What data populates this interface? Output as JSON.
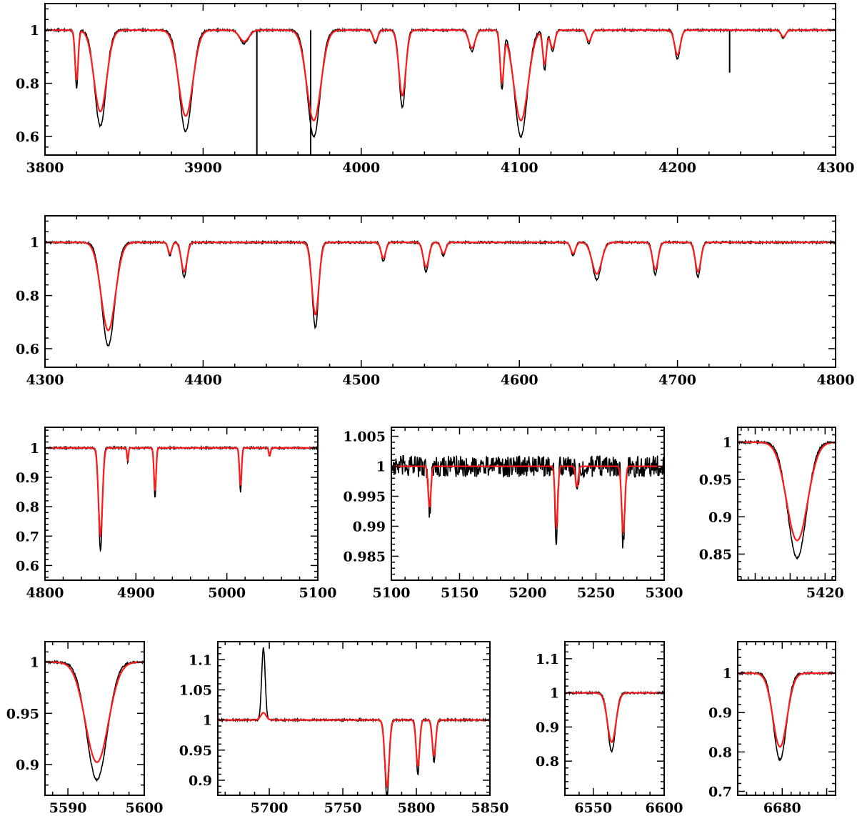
{
  "colors": {
    "observed": "#000000",
    "model": "#ff1a1a",
    "frame": "#000000"
  },
  "chart_data": [
    {
      "type": "line",
      "title": "",
      "xlabel": "",
      "ylabel": "",
      "xlim": [
        3800,
        4300
      ],
      "ylim": [
        0.53,
        1.1
      ],
      "grid": false,
      "x_ticks": [
        3800,
        3900,
        4000,
        4100,
        4200,
        4300
      ],
      "y_ticks": [
        {
          "v": 0.6,
          "label": "0.6"
        },
        {
          "v": 0.8,
          "label": "0.8"
        },
        {
          "v": 1,
          "label": "1"
        }
      ],
      "lines": [
        {
          "x": 3820,
          "d": 0.22,
          "w": 1.0
        },
        {
          "x": 3835,
          "d": 0.36,
          "w": 4
        },
        {
          "x": 3889,
          "d": 0.38,
          "w": 4.5
        },
        {
          "x": 3926,
          "d": 0.05,
          "w": 3
        },
        {
          "x": 3970,
          "d": 0.4,
          "w": 4.5
        },
        {
          "x": 4009,
          "d": 0.05,
          "w": 1.5
        },
        {
          "x": 4026,
          "d": 0.29,
          "w": 2.2
        },
        {
          "x": 4070,
          "d": 0.08,
          "w": 2
        },
        {
          "x": 4089,
          "d": 0.22,
          "w": 1.2
        },
        {
          "x": 4101,
          "d": 0.4,
          "w": 4.5
        },
        {
          "x": 4116,
          "d": 0.15,
          "w": 1.2
        },
        {
          "x": 4121,
          "d": 0.08,
          "w": 1.5
        },
        {
          "x": 4144,
          "d": 0.05,
          "w": 1.5
        },
        {
          "x": 4200,
          "d": 0.11,
          "w": 1.8
        },
        {
          "x": 4267,
          "d": 0.03,
          "w": 1.5
        }
      ],
      "spikes": [
        {
          "x": 3934,
          "depth": 0.99
        },
        {
          "x": 3968,
          "depth": 0.9
        },
        {
          "x": 4233,
          "depth": 0.16
        }
      ]
    },
    {
      "type": "line",
      "title": "",
      "xlabel": "",
      "ylabel": "",
      "xlim": [
        4300,
        4800
      ],
      "ylim": [
        0.53,
        1.1
      ],
      "grid": false,
      "x_ticks": [
        4300,
        4400,
        4500,
        4600,
        4700,
        4800
      ],
      "y_ticks": [
        {
          "v": 0.6,
          "label": "0.6"
        },
        {
          "v": 0.8,
          "label": "0.8"
        },
        {
          "v": 1,
          "label": "1"
        }
      ],
      "lines": [
        {
          "x": 4340,
          "d": 0.39,
          "w": 4.5
        },
        {
          "x": 4379,
          "d": 0.05,
          "w": 1.2
        },
        {
          "x": 4388,
          "d": 0.13,
          "w": 1.8
        },
        {
          "x": 4471,
          "d": 0.32,
          "w": 2.2
        },
        {
          "x": 4514,
          "d": 0.07,
          "w": 1.5
        },
        {
          "x": 4541,
          "d": 0.11,
          "w": 1.8
        },
        {
          "x": 4552,
          "d": 0.05,
          "w": 1.5
        },
        {
          "x": 4634,
          "d": 0.05,
          "w": 1.5
        },
        {
          "x": 4649,
          "d": 0.14,
          "w": 3
        },
        {
          "x": 4686,
          "d": 0.12,
          "w": 1.8
        },
        {
          "x": 4713,
          "d": 0.13,
          "w": 1.8
        }
      ],
      "spikes": []
    },
    {
      "type": "line",
      "title": "",
      "xlabel": "",
      "ylabel": "",
      "xlim": [
        4800,
        5100
      ],
      "ylim": [
        0.55,
        1.07
      ],
      "grid": false,
      "x_ticks": [
        4800,
        4900,
        5000,
        5100
      ],
      "y_ticks": [
        {
          "v": 0.6,
          "label": "0.6"
        },
        {
          "v": 0.7,
          "label": "0.7"
        },
        {
          "v": 0.8,
          "label": "0.8"
        },
        {
          "v": 0.9,
          "label": "0.9"
        },
        {
          "v": 1,
          "label": "1"
        }
      ],
      "lines": [
        {
          "x": 4861,
          "d": 0.35,
          "w": 2.2
        },
        {
          "x": 4921,
          "d": 0.17,
          "w": 1.2
        },
        {
          "x": 5015,
          "d": 0.15,
          "w": 1.2
        },
        {
          "x": 4891,
          "d": 0.05,
          "w": 0.8
        },
        {
          "x": 5047,
          "d": 0.03,
          "w": 1
        }
      ],
      "spikes": []
    },
    {
      "type": "line",
      "title": "",
      "xlabel": "",
      "ylabel": "",
      "xlim": [
        5100,
        5300
      ],
      "ylim": [
        0.981,
        1.0065
      ],
      "grid": false,
      "x_ticks": [
        5100,
        5150,
        5200,
        5250,
        5300
      ],
      "y_ticks": [
        {
          "v": 0.985,
          "label": "0.985"
        },
        {
          "v": 0.99,
          "label": "0.99"
        },
        {
          "v": 0.995,
          "label": "0.995"
        },
        {
          "v": 1,
          "label": "1"
        },
        {
          "v": 1.005,
          "label": "1.005"
        }
      ],
      "lines": [
        {
          "x": 5128,
          "d": 0.008,
          "w": 1
        },
        {
          "x": 5221,
          "d": 0.012,
          "w": 1
        },
        {
          "x": 5270,
          "d": 0.013,
          "w": 1.2
        },
        {
          "x": 5236,
          "d": 0.004,
          "w": 1
        }
      ],
      "spikes": []
    },
    {
      "type": "line",
      "title": "",
      "xlabel": "",
      "ylabel": "",
      "xlim": [
        5395,
        5423
      ],
      "ylim": [
        0.815,
        1.02
      ],
      "grid": false,
      "x_ticks": [
        5420
      ],
      "y_ticks": [
        {
          "v": 0.85,
          "label": "0.85"
        },
        {
          "v": 0.9,
          "label": "0.9"
        },
        {
          "v": 0.95,
          "label": "0.95"
        },
        {
          "v": 1,
          "label": "1"
        }
      ],
      "lines": [
        {
          "x": 5412,
          "d": 0.155,
          "w": 3
        }
      ],
      "spikes": []
    },
    {
      "type": "line",
      "title": "",
      "xlabel": "",
      "ylabel": "",
      "xlim": [
        5587,
        5600
      ],
      "ylim": [
        0.87,
        1.02
      ],
      "grid": false,
      "x_ticks": [
        5590,
        5600
      ],
      "y_ticks": [
        {
          "v": 0.9,
          "label": "0.9"
        },
        {
          "v": 0.95,
          "label": "0.95"
        },
        {
          "v": 1,
          "label": "1"
        }
      ],
      "lines": [
        {
          "x": 5593.8,
          "d": 0.115,
          "w": 1.5
        }
      ],
      "spikes": []
    },
    {
      "type": "line",
      "title": "",
      "xlabel": "",
      "ylabel": "",
      "xlim": [
        5665,
        5850
      ],
      "ylim": [
        0.875,
        1.13
      ],
      "grid": false,
      "x_ticks": [
        5700,
        5750,
        5800,
        5850
      ],
      "y_ticks": [
        {
          "v": 0.9,
          "label": "0.9"
        },
        {
          "v": 0.95,
          "label": "0.95"
        },
        {
          "v": 1,
          "label": "1"
        },
        {
          "v": 1.05,
          "label": "1.05"
        },
        {
          "v": 1.1,
          "label": "1.1"
        }
      ],
      "lines": [
        {
          "x": 5780,
          "d": 0.13,
          "w": 1.5
        },
        {
          "x": 5801,
          "d": 0.09,
          "w": 1.2
        },
        {
          "x": 5812,
          "d": 0.07,
          "w": 1.2
        }
      ],
      "spikes": [],
      "emission": {
        "x": 5696,
        "h": 0.12,
        "w": 1.2
      }
    },
    {
      "type": "line",
      "title": "",
      "xlabel": "",
      "ylabel": "",
      "xlim": [
        6530,
        6600
      ],
      "ylim": [
        0.7,
        1.15
      ],
      "grid": false,
      "x_ticks": [
        6550,
        6600
      ],
      "y_ticks": [
        {
          "v": 0.8,
          "label": "0.8"
        },
        {
          "v": 0.9,
          "label": "0.9"
        },
        {
          "v": 1,
          "label": "1"
        },
        {
          "v": 1.1,
          "label": "1.1"
        }
      ],
      "lines": [
        {
          "x": 6563,
          "d": 0.17,
          "w": 3
        }
      ],
      "spikes": []
    },
    {
      "type": "line",
      "title": "",
      "xlabel": "",
      "ylabel": "",
      "xlim": [
        6670,
        6692
      ],
      "ylim": [
        0.69,
        1.08
      ],
      "grid": false,
      "x_ticks": [
        6680
      ],
      "y_ticks": [
        {
          "v": 0.7,
          "label": "0.7"
        },
        {
          "v": 0.8,
          "label": "0.8"
        },
        {
          "v": 0.9,
          "label": "0.9"
        },
        {
          "v": 1,
          "label": "1"
        }
      ],
      "lines": [
        {
          "x": 6679.5,
          "d": 0.22,
          "w": 1.6
        }
      ],
      "spikes": []
    }
  ]
}
